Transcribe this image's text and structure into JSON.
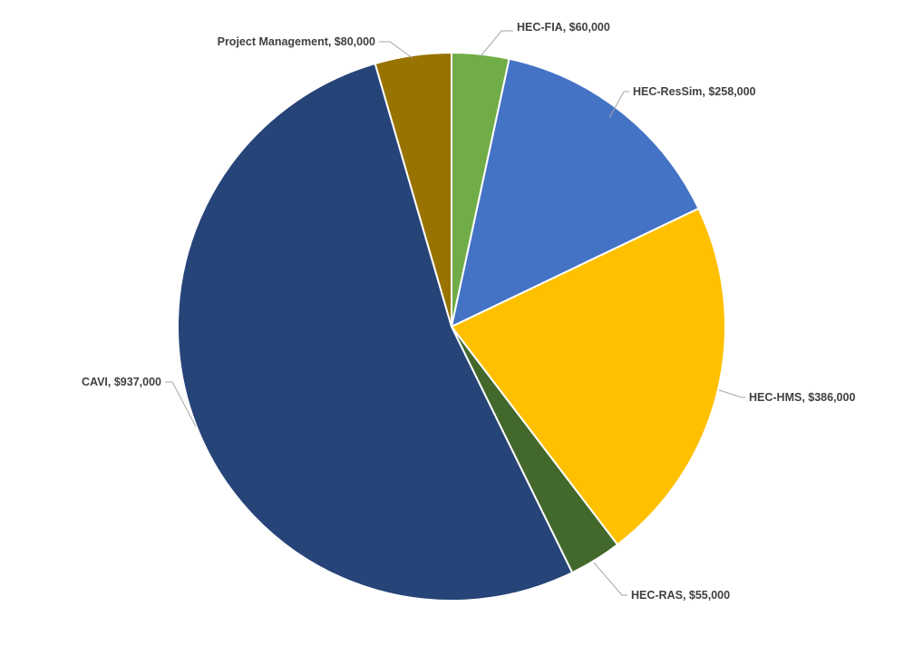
{
  "chart_data": {
    "type": "pie",
    "title": "",
    "slices": [
      {
        "name": "HEC-FIA",
        "value": 60000,
        "label": "HEC-FIA, $60,000",
        "color": "#70ad47"
      },
      {
        "name": "HEC-ResSim",
        "value": 258000,
        "label": "HEC-ResSim, $258,000",
        "color": "#4472c4"
      },
      {
        "name": "HEC-HMS",
        "value": 386000,
        "label": "HEC-HMS, $386,000",
        "color": "#ffc000"
      },
      {
        "name": "HEC-RAS",
        "value": 55000,
        "label": "HEC-RAS, $55,000",
        "color": "#43682b"
      },
      {
        "name": "CAVI",
        "value": 937000,
        "label": "CAVI, $937,000",
        "color": "#264478"
      },
      {
        "name": "Project Management",
        "value": 80000,
        "label": "Project Management, $80,000",
        "color": "#997300"
      }
    ],
    "start_angle": "12 o'clock",
    "direction": "clockwise",
    "legend": "none",
    "data_labels": "outside-with-leader-lines"
  }
}
